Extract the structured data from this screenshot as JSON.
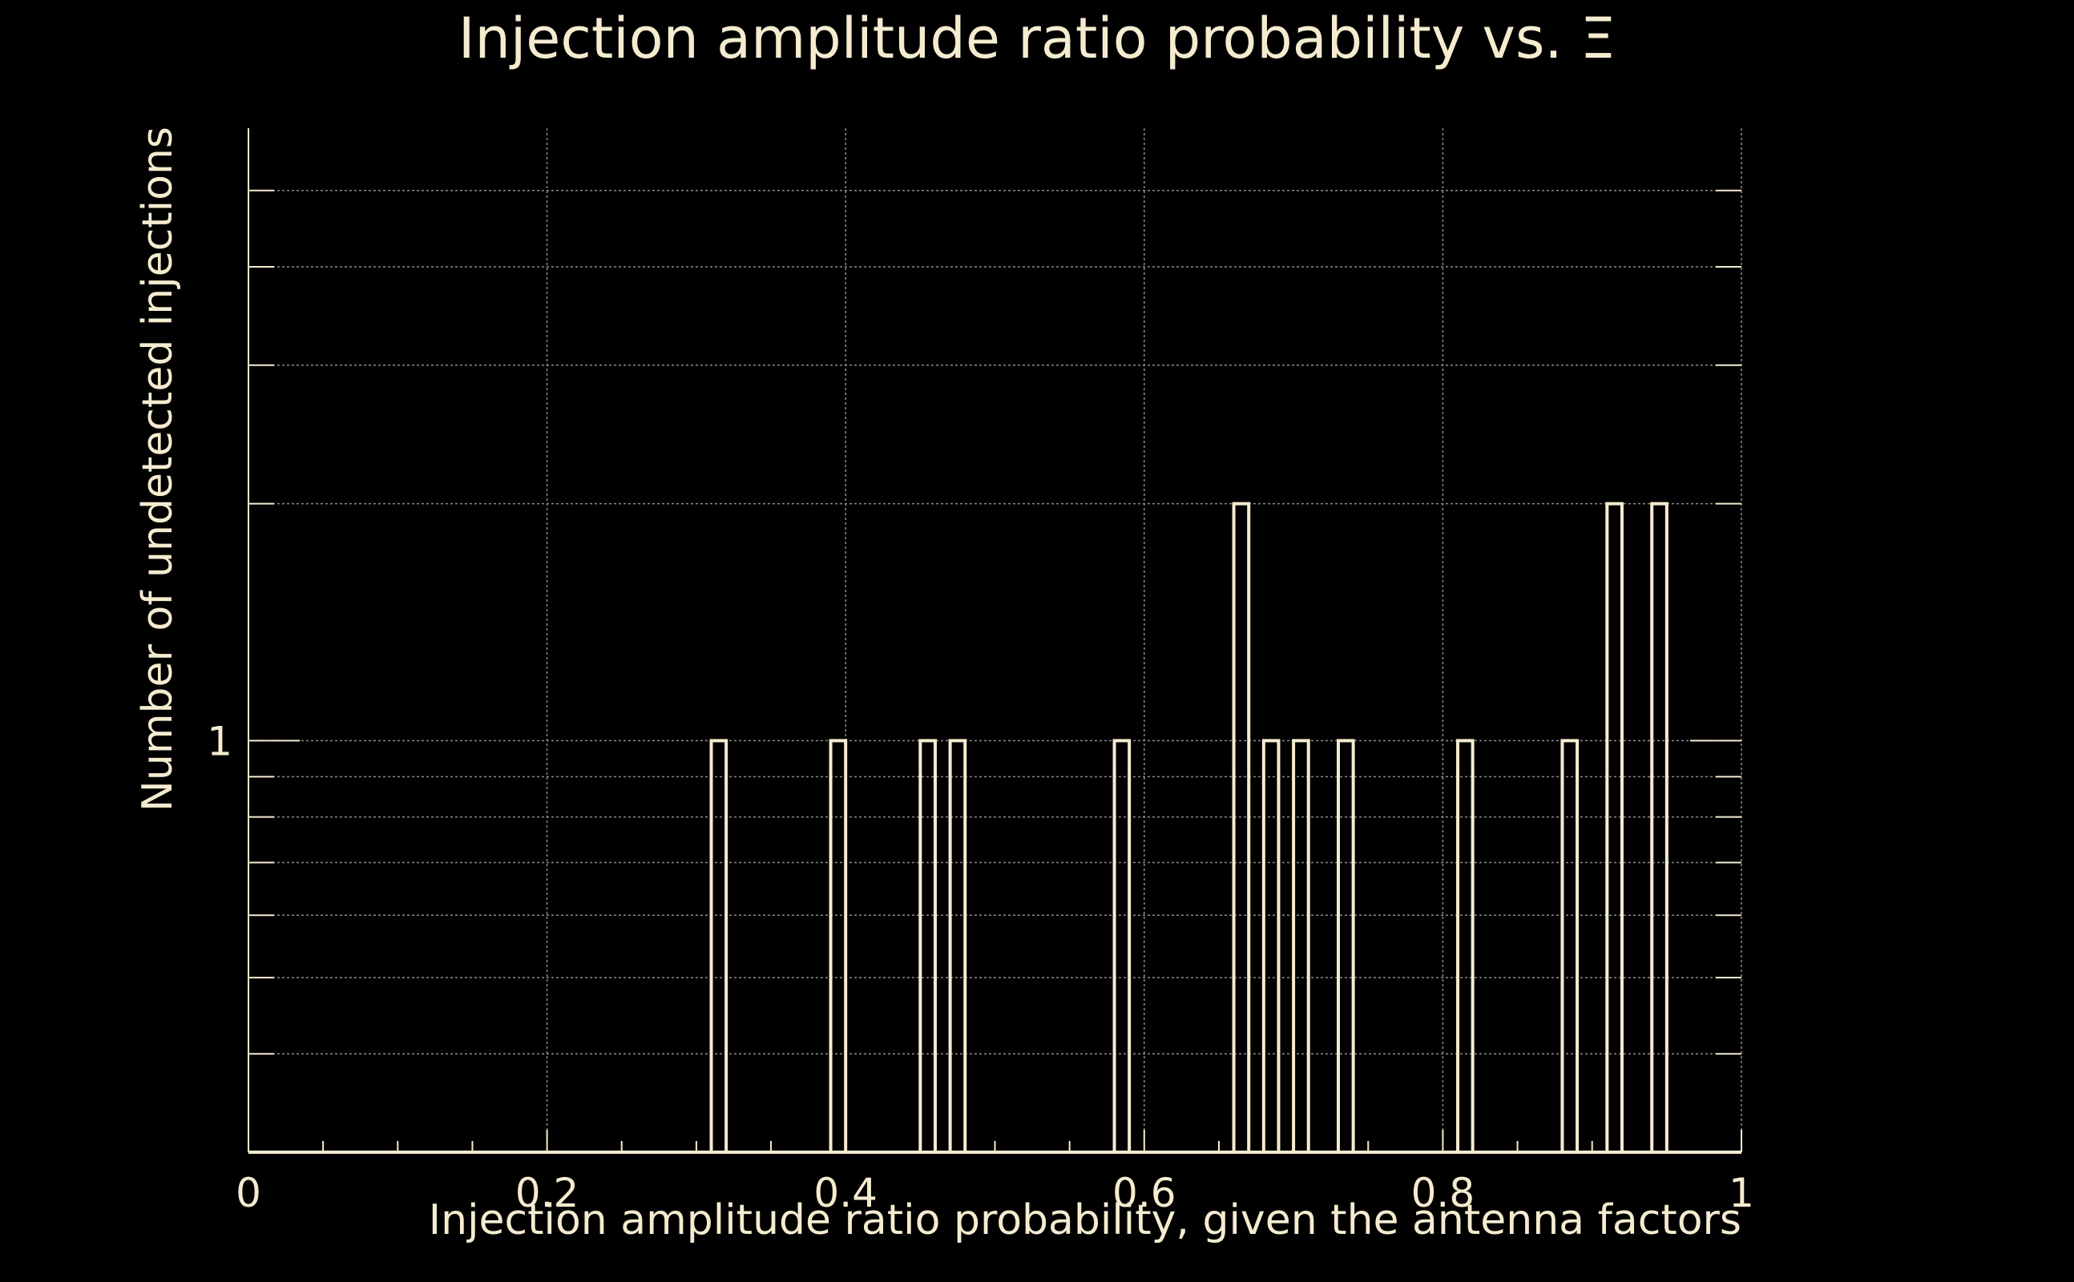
{
  "colors": {
    "background": "#000000",
    "foreground": "#f5ecd0",
    "grid": "#8a8a8a"
  },
  "chart_data": {
    "type": "histogram",
    "title": "Injection amplitude ratio probability vs.  Ξ",
    "xlabel": "Injection amplitude ratio probability, given the antenna factors",
    "ylabel": "Number of undetected injections",
    "xlim": [
      0,
      1
    ],
    "y_scale": "log",
    "ylim": [
      0.3,
      6
    ],
    "x_ticks": [
      0,
      0.2,
      0.4,
      0.6,
      0.8,
      1
    ],
    "x_tick_labels": [
      "0",
      "0.2",
      "0.4",
      "0.6",
      "0.8",
      "1"
    ],
    "y_tick_labels": [
      {
        "value": 1,
        "label": "1"
      }
    ],
    "bin_width": 0.01,
    "bars": [
      {
        "x": 0.31,
        "count": 1
      },
      {
        "x": 0.39,
        "count": 1
      },
      {
        "x": 0.45,
        "count": 1
      },
      {
        "x": 0.47,
        "count": 1
      },
      {
        "x": 0.58,
        "count": 1
      },
      {
        "x": 0.66,
        "count": 2
      },
      {
        "x": 0.68,
        "count": 1
      },
      {
        "x": 0.7,
        "count": 1
      },
      {
        "x": 0.73,
        "count": 1
      },
      {
        "x": 0.81,
        "count": 1
      },
      {
        "x": 0.88,
        "count": 1
      },
      {
        "x": 0.91,
        "count": 2
      },
      {
        "x": 0.94,
        "count": 2
      }
    ]
  }
}
